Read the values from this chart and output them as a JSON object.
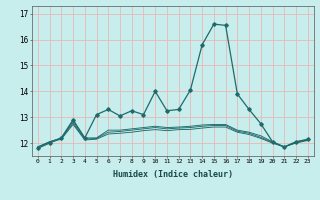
{
  "xlabel": "Humidex (Indice chaleur)",
  "background_color": "#c8eded",
  "grid_color": "#e8b8b8",
  "line_color": "#1e6b6b",
  "xlim": [
    -0.5,
    23.5
  ],
  "ylim": [
    11.5,
    17.3
  ],
  "yticks": [
    12,
    13,
    14,
    15,
    16,
    17
  ],
  "xtick_labels": [
    "0",
    "1",
    "2",
    "3",
    "4",
    "5",
    "6",
    "7",
    "8",
    "9",
    "10",
    "11",
    "12",
    "13",
    "14",
    "15",
    "16",
    "17",
    "18",
    "19",
    "20",
    "21",
    "22",
    "23"
  ],
  "series": [
    [
      11.8,
      12.0,
      12.2,
      12.9,
      12.2,
      13.1,
      13.3,
      13.05,
      13.25,
      13.1,
      14.0,
      13.25,
      13.3,
      14.05,
      15.8,
      16.6,
      16.55,
      13.9,
      13.3,
      12.75,
      12.05,
      11.85,
      12.05,
      12.15
    ],
    [
      11.85,
      12.05,
      12.2,
      12.85,
      12.2,
      12.2,
      12.5,
      12.5,
      12.55,
      12.6,
      12.65,
      12.6,
      12.62,
      12.65,
      12.7,
      12.72,
      12.72,
      12.5,
      12.42,
      12.28,
      12.05,
      11.85,
      12.05,
      12.12
    ],
    [
      11.85,
      12.05,
      12.18,
      12.78,
      12.15,
      12.18,
      12.42,
      12.45,
      12.5,
      12.55,
      12.6,
      12.55,
      12.58,
      12.6,
      12.65,
      12.68,
      12.68,
      12.46,
      12.38,
      12.22,
      12.02,
      11.85,
      12.03,
      12.12
    ],
    [
      11.85,
      12.03,
      12.15,
      12.72,
      12.12,
      12.15,
      12.35,
      12.38,
      12.42,
      12.48,
      12.52,
      12.48,
      12.52,
      12.53,
      12.58,
      12.62,
      12.62,
      12.42,
      12.33,
      12.18,
      12.0,
      11.85,
      12.0,
      12.1
    ]
  ]
}
